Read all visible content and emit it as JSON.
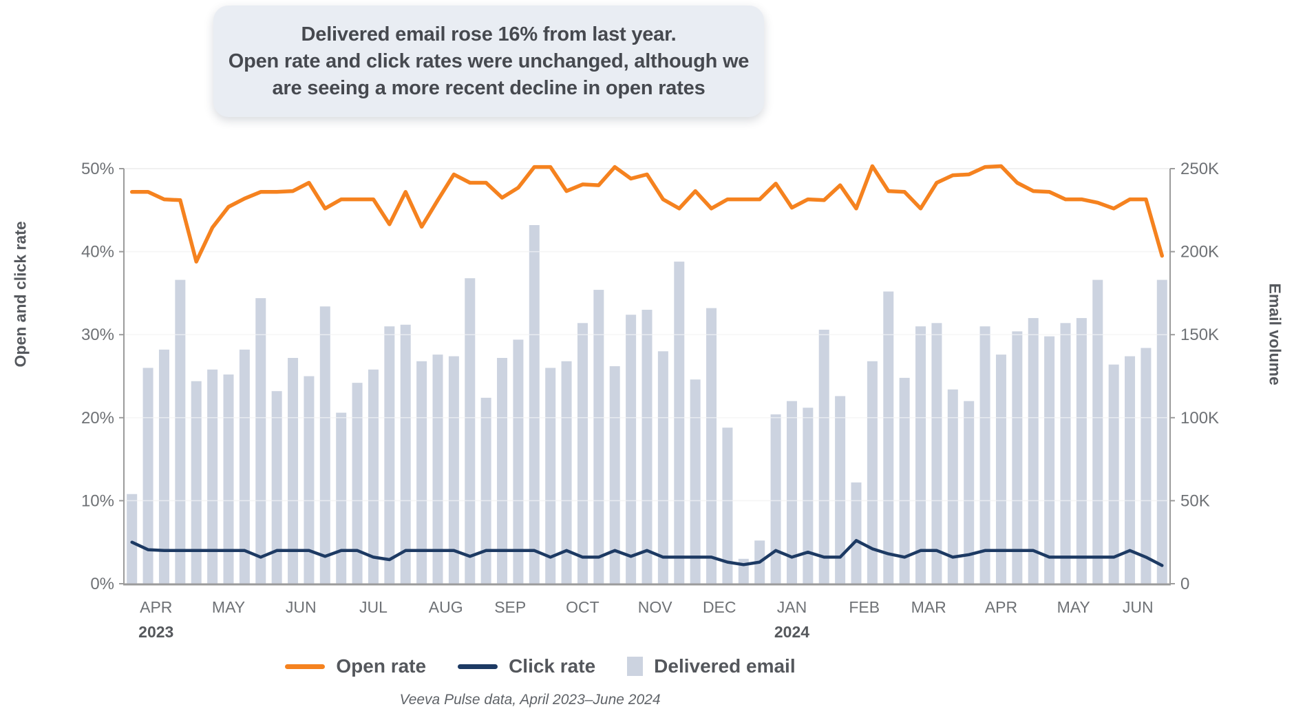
{
  "title": {
    "lines": [
      "Delivered email rose 16% from last year.",
      "Open rate and click rates were unchanged, although we",
      "are seeing a more recent decline in open rates"
    ]
  },
  "caption": "Veeva Pulse data, April 2023–June 2024",
  "colors": {
    "open_rate": "#F5821F",
    "click_rate": "#1D3A63",
    "delivered_email": "#CCD3E0",
    "axis_line": "#9B9B9B",
    "tick_text": "#6E7175",
    "year_text": "#55585C",
    "gridline": "#EBEBEB"
  },
  "legend": [
    {
      "label": "Open rate",
      "swatch": "line",
      "color": "#F5821F"
    },
    {
      "label": "Click rate",
      "swatch": "line",
      "color": "#1D3A63"
    },
    {
      "label": "Delivered email",
      "swatch": "square",
      "color": "#CCD3E0"
    }
  ],
  "chart_data": {
    "type": "mixed",
    "x_unit": "week",
    "axes": {
      "left": {
        "title": "Open and click rate",
        "ticks": [
          "50%",
          "40%",
          "30%",
          "20%",
          "10%",
          "0%"
        ],
        "min": 0,
        "max": 50,
        "unit": "%"
      },
      "right": {
        "title": "Email volume",
        "ticks": [
          "250K",
          "200K",
          "150K",
          "100K",
          "50K",
          "0"
        ],
        "min": 0,
        "max": 250,
        "unit": "K"
      }
    },
    "grid": true,
    "legend_position": "bottom",
    "months": [
      {
        "label": "APR",
        "year": "2023",
        "weeks": 4
      },
      {
        "label": "MAY",
        "weeks": 5
      },
      {
        "label": "JUN",
        "weeks": 4
      },
      {
        "label": "JUL",
        "weeks": 5
      },
      {
        "label": "AUG",
        "weeks": 4
      },
      {
        "label": "SEP",
        "weeks": 4
      },
      {
        "label": "OCT",
        "weeks": 5
      },
      {
        "label": "NOV",
        "weeks": 4
      },
      {
        "label": "DEC",
        "weeks": 4
      },
      {
        "label": "JAN",
        "year": "2024",
        "weeks": 5
      },
      {
        "label": "FEB",
        "weeks": 4
      },
      {
        "label": "MAR",
        "weeks": 4
      },
      {
        "label": "APR",
        "weeks": 5
      },
      {
        "label": "MAY",
        "weeks": 4
      },
      {
        "label": "JUN",
        "weeks": 4
      }
    ],
    "series": [
      {
        "name": "Open rate",
        "type": "line",
        "axis": "left",
        "unit": "%",
        "color": "#F5821F",
        "values": [
          47.2,
          47.2,
          46.3,
          46.2,
          38.8,
          42.9,
          45.4,
          46.4,
          47.2,
          47.2,
          47.3,
          48.3,
          45.2,
          46.3,
          46.3,
          46.3,
          43.3,
          47.2,
          43.0,
          46.2,
          49.3,
          48.3,
          48.3,
          46.5,
          47.7,
          50.2,
          50.2,
          47.3,
          48.1,
          48.0,
          50.2,
          48.8,
          49.3,
          46.3,
          45.2,
          47.3,
          45.2,
          46.3,
          46.3,
          46.3,
          48.2,
          45.3,
          46.3,
          46.2,
          48.0,
          45.2,
          50.3,
          47.3,
          47.2,
          45.2,
          48.3,
          49.2,
          49.3,
          50.2,
          50.3,
          48.3,
          47.3,
          47.2,
          46.3,
          46.3,
          45.9,
          45.2,
          46.3,
          46.3,
          39.5
        ]
      },
      {
        "name": "Click rate",
        "type": "line",
        "axis": "left",
        "unit": "%",
        "color": "#1D3A63",
        "values": [
          5.0,
          4.1,
          4.0,
          4.0,
          4.0,
          4.0,
          4.0,
          4.0,
          3.2,
          4.0,
          4.0,
          4.0,
          3.3,
          4.0,
          4.0,
          3.2,
          2.9,
          4.0,
          4.0,
          4.0,
          4.0,
          3.3,
          4.0,
          4.0,
          4.0,
          4.0,
          3.2,
          4.0,
          3.2,
          3.2,
          4.0,
          3.3,
          4.0,
          3.2,
          3.2,
          3.2,
          3.2,
          2.6,
          2.3,
          2.6,
          4.0,
          3.2,
          3.8,
          3.2,
          3.2,
          5.2,
          4.2,
          3.6,
          3.2,
          4.0,
          4.0,
          3.2,
          3.5,
          4.0,
          4.0,
          4.0,
          4.0,
          3.2,
          3.2,
          3.2,
          3.2,
          3.2,
          4.0,
          3.2,
          2.2
        ]
      },
      {
        "name": "Delivered email",
        "type": "bar",
        "axis": "right",
        "unit": "K emails",
        "color": "#CCD3E0",
        "values": [
          54,
          130,
          141,
          183,
          122,
          129,
          126,
          141,
          172,
          116,
          136,
          125,
          167,
          103,
          121,
          129,
          155,
          156,
          134,
          138,
          137,
          184,
          112,
          136,
          147,
          216,
          130,
          134,
          157,
          177,
          131,
          162,
          165,
          140,
          194,
          123,
          166,
          94,
          15,
          26,
          102,
          110,
          106,
          153,
          113,
          61,
          134,
          176,
          124,
          155,
          157,
          117,
          110,
          155,
          138,
          152,
          160,
          149,
          157,
          160,
          183,
          132,
          137,
          142,
          183
        ]
      }
    ]
  }
}
